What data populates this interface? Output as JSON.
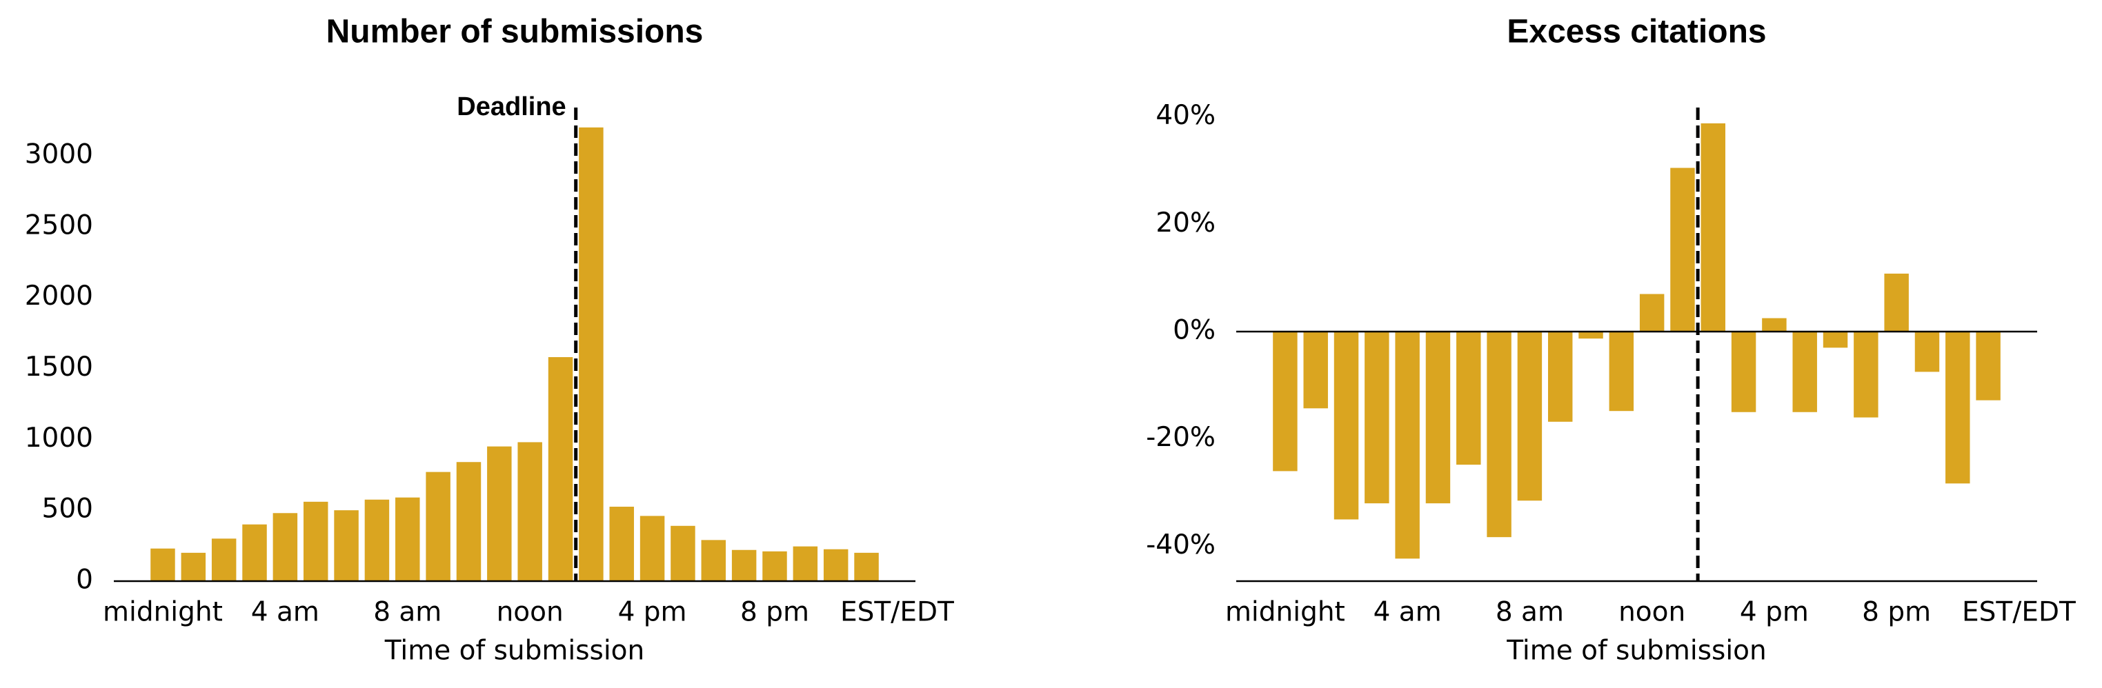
{
  "chart_data": [
    {
      "type": "bar",
      "title": "Number of submissions",
      "xlabel": "Time of submission",
      "color": "#daa520",
      "x": [
        0,
        1,
        2,
        3,
        4,
        5,
        6,
        7,
        8,
        9,
        10,
        11,
        12,
        13,
        14,
        15,
        16,
        17,
        18,
        19,
        20,
        21,
        22,
        23
      ],
      "values": [
        230,
        200,
        300,
        400,
        480,
        560,
        500,
        575,
        590,
        770,
        840,
        950,
        980,
        1580,
        3200,
        525,
        460,
        390,
        290,
        220,
        210,
        245,
        225,
        200
      ],
      "xlim": [
        -1.6,
        24.6
      ],
      "ylim": [
        0,
        3350
      ],
      "xticks": [
        {
          "value": 0,
          "label": "midnight"
        },
        {
          "value": 4,
          "label": "4 am"
        },
        {
          "value": 8,
          "label": "8 am"
        },
        {
          "value": 12,
          "label": "noon"
        },
        {
          "value": 16,
          "label": "4 pm"
        },
        {
          "value": 20,
          "label": "8 pm"
        },
        {
          "value": 24,
          "label": "EST/EDT"
        }
      ],
      "yticks": [
        0,
        500,
        1000,
        1500,
        2000,
        2500,
        3000
      ],
      "vline": 13.5,
      "annotation": "Deadline"
    },
    {
      "type": "bar",
      "title": "Excess citations",
      "xlabel": "Time of submission",
      "color": "#daa520",
      "x": [
        0,
        1,
        2,
        3,
        4,
        5,
        6,
        7,
        8,
        9,
        10,
        11,
        12,
        13,
        14,
        15,
        16,
        17,
        18,
        19,
        20,
        21,
        22,
        23
      ],
      "values": [
        -26,
        -14.3,
        -35,
        -32,
        -42.3,
        -32,
        -24.8,
        -38.3,
        -31.5,
        -16.8,
        -1.3,
        -14.8,
        7,
        30.5,
        38.8,
        -15,
        2.5,
        -15,
        -3,
        -16,
        10.8,
        -7.5,
        -28.3,
        -12.8
      ],
      "xlim": [
        -1.6,
        24.6
      ],
      "ylim": [
        -46.5,
        42
      ],
      "xticks": [
        {
          "value": 0,
          "label": "midnight"
        },
        {
          "value": 4,
          "label": "4 am"
        },
        {
          "value": 8,
          "label": "8 am"
        },
        {
          "value": 12,
          "label": "noon"
        },
        {
          "value": 16,
          "label": "4 pm"
        },
        {
          "value": 20,
          "label": "8 pm"
        },
        {
          "value": 24,
          "label": "EST/EDT"
        }
      ],
      "yticks": [
        {
          "value": -40,
          "label": "-40%"
        },
        {
          "value": -20,
          "label": "-20%"
        },
        {
          "value": 0,
          "label": "0%"
        },
        {
          "value": 20,
          "label": "20%"
        },
        {
          "value": 40,
          "label": "40%"
        }
      ],
      "vline": 13.5
    }
  ]
}
